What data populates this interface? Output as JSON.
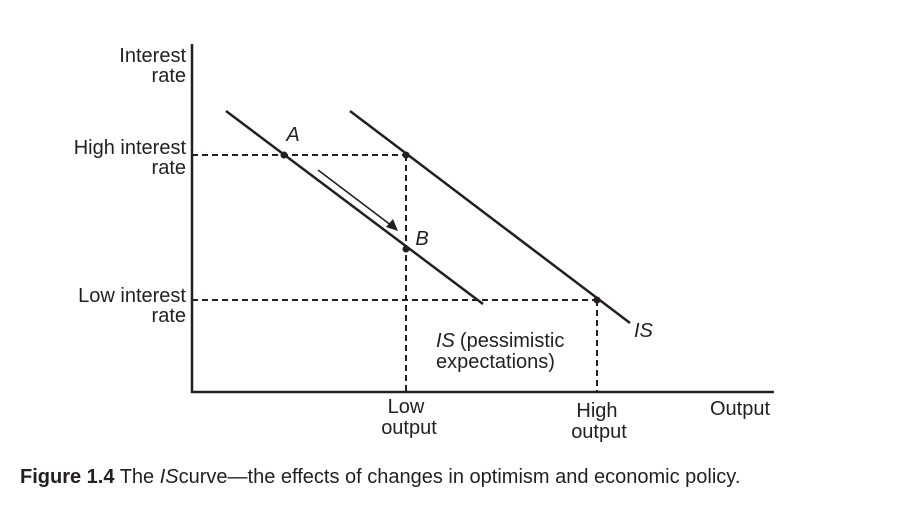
{
  "axes": {
    "y_title_line1": "Interest",
    "y_title_line2": "rate",
    "x_title": "Output"
  },
  "ticks": {
    "high_rate_line1": "High interest",
    "high_rate_line2": "rate",
    "low_rate_line1": "Low interest",
    "low_rate_line2": "rate",
    "low_output_line1": "Low",
    "low_output_line2": "output",
    "high_output_line1": "High",
    "high_output_line2": "output"
  },
  "points": {
    "a": "A",
    "b": "B"
  },
  "curves": {
    "is_label": "IS",
    "pessimistic_is": "IS",
    "pessimistic_rest_line1": "(pessimistic",
    "pessimistic_rest_line2": "expectations)"
  },
  "caption": {
    "label": "Figure 1.4",
    "text_pre": "The",
    "text_italic": "IS",
    "text_post": "curve—the effects of changes in optimism and economic policy."
  },
  "colors": {
    "ink": "#231f20",
    "background": "#ffffff"
  }
}
